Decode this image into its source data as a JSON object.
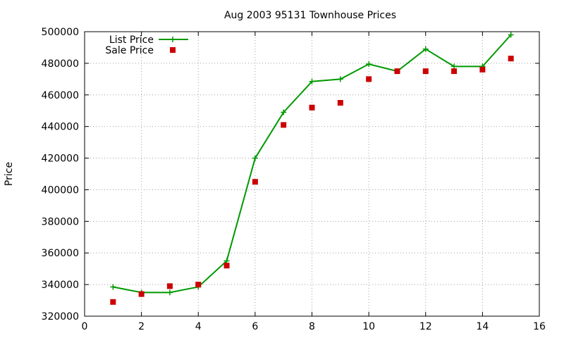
{
  "chart_data": {
    "type": "line",
    "title": "Aug 2003 95131 Townhouse Prices",
    "xlabel": "",
    "ylabel": "Price",
    "xlim": [
      0,
      16
    ],
    "ylim": [
      320000,
      500000
    ],
    "xticks": [
      0,
      2,
      4,
      6,
      8,
      10,
      12,
      14,
      16
    ],
    "yticks": [
      320000,
      340000,
      360000,
      380000,
      400000,
      420000,
      440000,
      460000,
      480000,
      500000
    ],
    "grid": true,
    "legend_position": "top-left",
    "series": [
      {
        "name": "List Price",
        "style": "line-with-plus-markers",
        "color": "#009900",
        "x": [
          1,
          2,
          3,
          4,
          5,
          6,
          7,
          8,
          9,
          10,
          11,
          12,
          13,
          14,
          15
        ],
        "y": [
          338500,
          335000,
          335000,
          338500,
          355000,
          420000,
          449000,
          468500,
          470000,
          479500,
          475000,
          489000,
          478000,
          478000,
          498000
        ]
      },
      {
        "name": "Sale Price",
        "style": "square-markers",
        "color": "#cc0000",
        "x": [
          1,
          2,
          3,
          4,
          5,
          6,
          7,
          8,
          9,
          10,
          11,
          12,
          13,
          14,
          15
        ],
        "y": [
          329000,
          334000,
          339000,
          340000,
          352000,
          405000,
          441000,
          452000,
          455000,
          470000,
          475000,
          475000,
          475000,
          476000,
          483000
        ]
      }
    ]
  }
}
